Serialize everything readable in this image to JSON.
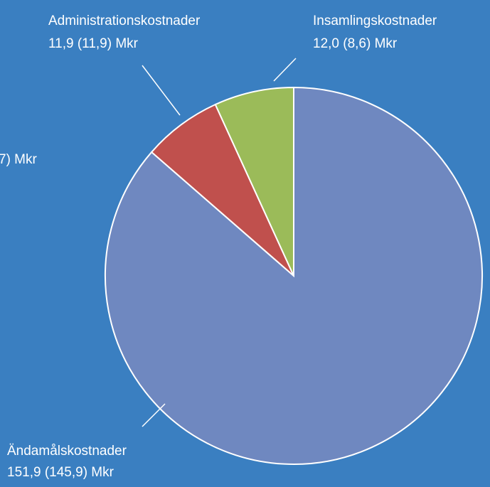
{
  "chart_data": {
    "type": "pie",
    "categories": [
      "Ändamålskostnader",
      "Administrationskostnader",
      "Insamlingskostnader"
    ],
    "values": [
      151.9,
      11.9,
      12.0
    ],
    "value_labels": [
      "151,9 (145,9) Mkr",
      "11,9 (11,9) Mkr",
      "12,0 (8,6) Mkr"
    ],
    "colors": [
      "#6f88c0",
      "#c0504d",
      "#9bbb59"
    ],
    "annotations": [
      "7) Mkr"
    ]
  }
}
